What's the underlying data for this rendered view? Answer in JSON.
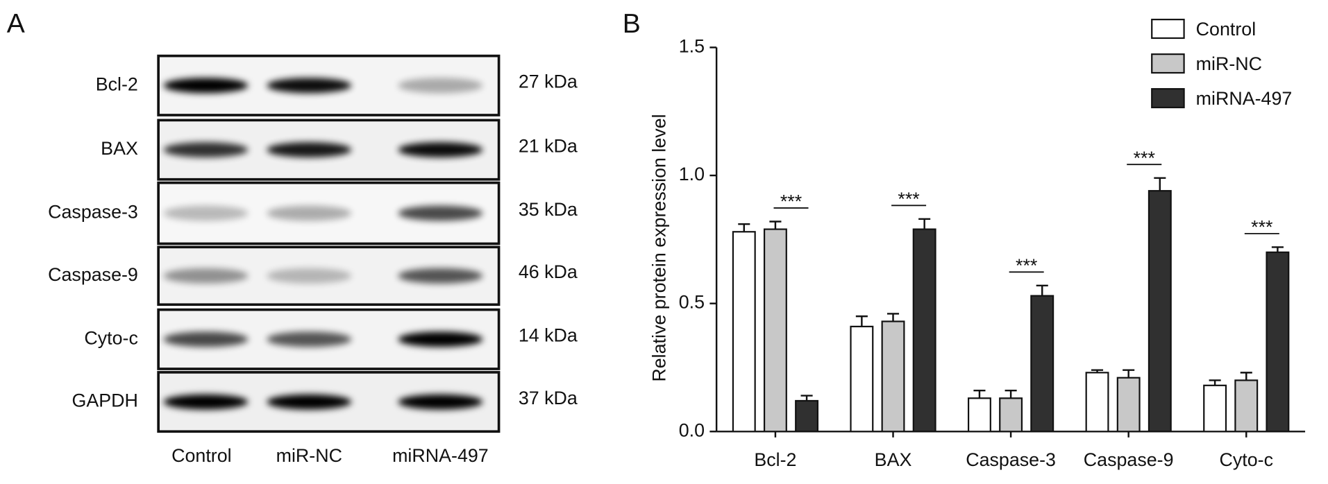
{
  "panel_a": {
    "letter": "A",
    "lanes": [
      "Control",
      "miR-NC",
      "miRNA-497"
    ],
    "rows": [
      {
        "label": "Bcl-2",
        "size": "27 kDa"
      },
      {
        "label": "BAX",
        "size": "21 kDa"
      },
      {
        "label": "Caspase-3",
        "size": "35 kDa"
      },
      {
        "label": "Caspase-9",
        "size": "46 kDa"
      },
      {
        "label": "Cyto-c",
        "size": "14 kDa"
      },
      {
        "label": "GAPDH",
        "size": "37 kDa"
      }
    ]
  },
  "panel_b": {
    "letter": "B"
  },
  "chart_data": {
    "type": "bar",
    "ylabel": "Relative protein expression level",
    "categories": [
      "Bcl-2",
      "BAX",
      "Caspase-3",
      "Caspase-9",
      "Cyto-c"
    ],
    "series": [
      {
        "name": "Control",
        "color": "#ffffff",
        "values": [
          0.78,
          0.41,
          0.13,
          0.23,
          0.18
        ],
        "errors": [
          0.03,
          0.04,
          0.03,
          0.01,
          0.02
        ]
      },
      {
        "name": "miR-NC",
        "color": "#c8c8c8",
        "values": [
          0.79,
          0.43,
          0.13,
          0.21,
          0.2
        ],
        "errors": [
          0.03,
          0.03,
          0.03,
          0.03,
          0.03
        ]
      },
      {
        "name": "miRNA-497",
        "color": "#303030",
        "values": [
          0.12,
          0.79,
          0.53,
          0.94,
          0.7
        ],
        "errors": [
          0.02,
          0.04,
          0.04,
          0.05,
          0.02
        ]
      }
    ],
    "significance": [
      "***",
      "***",
      "***",
      "***",
      "***"
    ],
    "ylim": [
      0,
      1.5
    ],
    "yticks": [
      {
        "value": 0,
        "label": "0.0"
      },
      {
        "value": 0.5,
        "label": "0.5"
      },
      {
        "value": 1,
        "label": "1.0"
      },
      {
        "value": 1.5,
        "label": "1.5"
      }
    ]
  }
}
